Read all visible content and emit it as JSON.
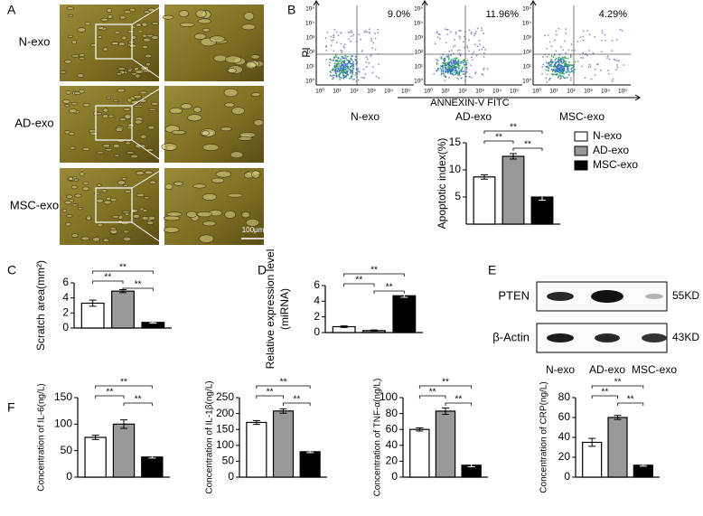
{
  "panel_labels": [
    "A",
    "B",
    "C",
    "D",
    "E",
    "F"
  ],
  "micrographs": {
    "rows": [
      "N-exo",
      "AD-exo",
      "MSC-exo"
    ],
    "scale_bar": "100μm"
  },
  "flow_cytometry": {
    "y_label": "PI",
    "x_label": "ANNEXIN-V FITC",
    "tick_labels": [
      "10⁰",
      "10¹",
      "10²",
      "10³",
      "10⁴",
      "10⁵"
    ],
    "plots": [
      {
        "name": "N-exo",
        "percent": "9.0%"
      },
      {
        "name": "AD-exo",
        "percent": "11.96%"
      },
      {
        "name": "MSC-exo",
        "percent": "4.29%"
      }
    ]
  },
  "western_blot": {
    "rows": [
      {
        "label": "PTEN",
        "size": "55KD"
      },
      {
        "label": "β-Actin",
        "size": "43KD"
      }
    ],
    "lanes": [
      "N-exo",
      "AD-exo",
      "MSC-exo"
    ]
  },
  "chart_data": [
    {
      "type": "bar",
      "ylabel": "Apoptotic index(%)",
      "categories": [
        null,
        null,
        null
      ],
      "values": [
        8.7,
        12.5,
        5.0
      ],
      "errors": [
        0.4,
        0.5,
        0.6
      ],
      "colors": [
        "#ffffff",
        "#999999",
        "#000000"
      ],
      "ylim": [
        0,
        15
      ],
      "yticks": [
        5,
        10,
        15
      ],
      "annotations": [
        "**",
        "**",
        "**"
      ],
      "legend": [
        "N-exo",
        "AD-exo",
        "MSC-exo"
      ],
      "legend_position": "right"
    },
    {
      "type": "bar",
      "ylabel": "Scratch area(mm²)",
      "categories": [
        null,
        null,
        null
      ],
      "values": [
        3.3,
        4.9,
        0.75
      ],
      "errors": [
        0.4,
        0.2,
        0.1
      ],
      "colors": [
        "#ffffff",
        "#999999",
        "#000000"
      ],
      "ylim": [
        0,
        6
      ],
      "yticks": [
        0,
        2,
        4,
        6
      ],
      "annotations": [
        "**",
        "**",
        "**"
      ]
    },
    {
      "type": "bar",
      "ylabel": [
        "Relative expression level",
        "(miRNA)"
      ],
      "categories": [
        null,
        null,
        null
      ],
      "values": [
        0.75,
        0.25,
        4.7
      ],
      "errors": [
        0.1,
        0.08,
        0.2
      ],
      "colors": [
        "#ffffff",
        "#999999",
        "#000000"
      ],
      "ylim": [
        0,
        6
      ],
      "yticks": [
        0,
        2,
        4,
        6
      ],
      "annotations": [
        "**",
        "**",
        "**"
      ]
    },
    {
      "type": "bar",
      "ylabel": "Concentration of IL-6(ng/L)",
      "categories": [
        null,
        null,
        null
      ],
      "values": [
        75,
        100,
        38
      ],
      "errors": [
        4,
        8,
        2
      ],
      "colors": [
        "#ffffff",
        "#999999",
        "#000000"
      ],
      "ylim": [
        0,
        150
      ],
      "yticks": [
        0,
        50,
        100,
        150
      ],
      "annotations": [
        "**",
        "**",
        "**"
      ]
    },
    {
      "type": "bar",
      "ylabel": "Concentration of IL-1β(ng/L)",
      "categories": [
        null,
        null,
        null
      ],
      "values": [
        172,
        208,
        80
      ],
      "errors": [
        6,
        7,
        3
      ],
      "colors": [
        "#ffffff",
        "#999999",
        "#000000"
      ],
      "ylim": [
        0,
        250
      ],
      "yticks": [
        0,
        50,
        100,
        150,
        200,
        250
      ],
      "annotations": [
        "**",
        "**",
        "**"
      ]
    },
    {
      "type": "bar",
      "ylabel": "Concentration of TNF-α(ng/L)",
      "categories": [
        null,
        null,
        null
      ],
      "values": [
        60,
        83,
        15
      ],
      "errors": [
        2,
        4,
        2
      ],
      "colors": [
        "#ffffff",
        "#999999",
        "#000000"
      ],
      "ylim": [
        0,
        100
      ],
      "yticks": [
        0,
        20,
        40,
        60,
        80,
        100
      ],
      "annotations": [
        "**",
        "**",
        "**"
      ]
    },
    {
      "type": "bar",
      "ylabel": "Concentration of CRP(ng/L)",
      "categories": [
        null,
        null,
        null
      ],
      "values": [
        35,
        60,
        12
      ],
      "errors": [
        4,
        2,
        1
      ],
      "colors": [
        "#ffffff",
        "#999999",
        "#000000"
      ],
      "ylim": [
        0,
        80
      ],
      "yticks": [
        0,
        20,
        40,
        60,
        80
      ],
      "annotations": [
        "**",
        "**",
        "**"
      ]
    }
  ]
}
